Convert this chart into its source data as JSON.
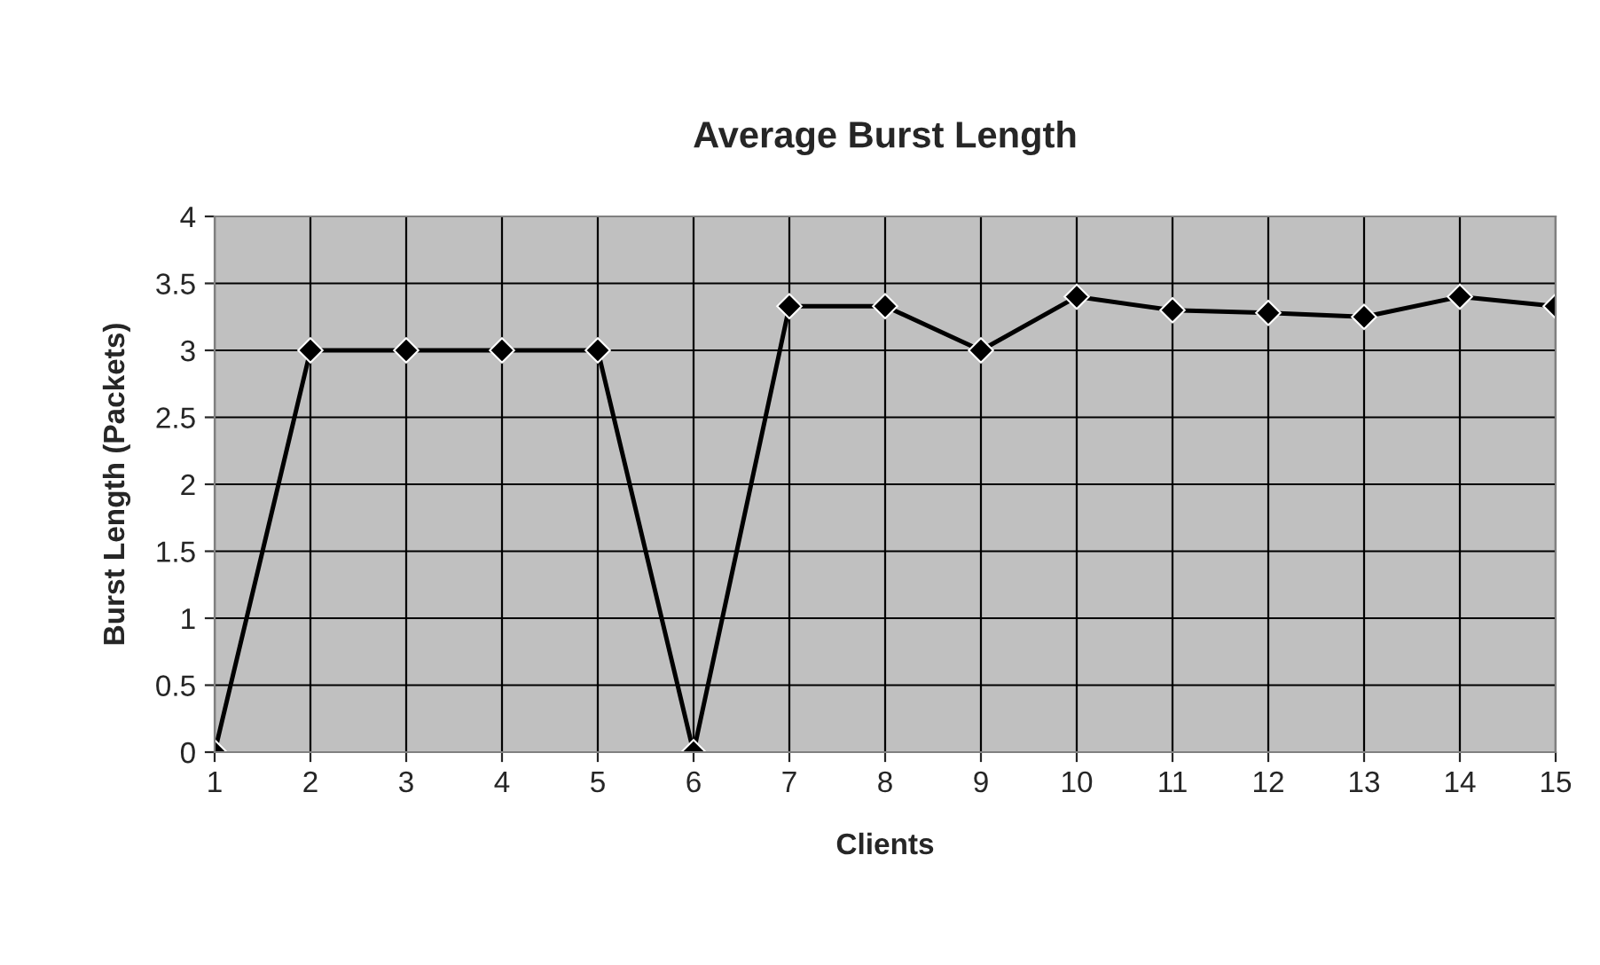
{
  "chart_data": {
    "type": "line",
    "title": "Average Burst Length",
    "xlabel": "Clients",
    "ylabel": "Burst Length (Packets)",
    "categories": [
      "1",
      "2",
      "3",
      "4",
      "5",
      "6",
      "7",
      "8",
      "9",
      "10",
      "11",
      "12",
      "13",
      "14",
      "15"
    ],
    "series": [
      {
        "color": "#000000",
        "values": [
          0,
          3,
          3,
          3,
          3,
          0,
          3.33,
          3.33,
          3.0,
          3.4,
          3.3,
          3.28,
          3.25,
          3.4,
          3.33
        ]
      }
    ],
    "ylim": [
      0,
      4
    ],
    "yticks": [
      0,
      0.5,
      1,
      1.5,
      2,
      2.5,
      3,
      3.5,
      4
    ],
    "grid": true,
    "marker": "diamond",
    "line_style": "solid",
    "legend": false
  }
}
